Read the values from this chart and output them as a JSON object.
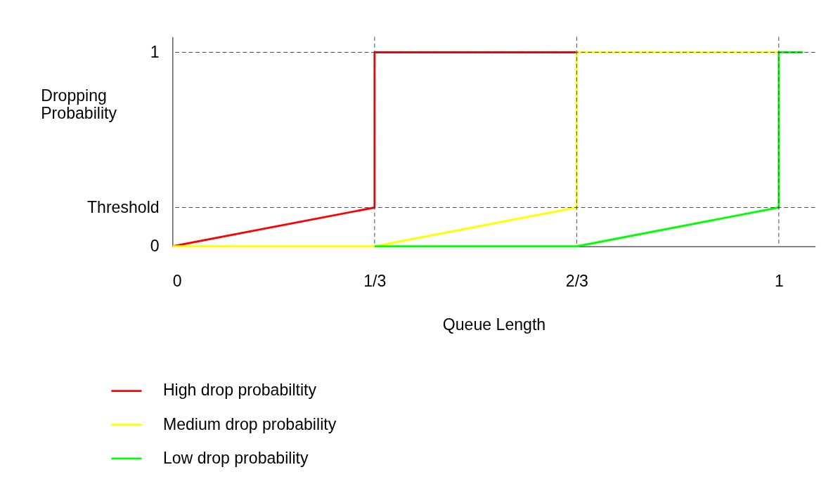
{
  "chart_data": {
    "type": "line",
    "xlabel": "Queue Length",
    "ylabel": "Dropping Probability",
    "xlim": [
      0,
      1.06
    ],
    "ylim": [
      0,
      1.08
    ],
    "xticks": [
      0,
      {
        "value": 0.3333,
        "label": "1/3"
      },
      {
        "value": 0.6667,
        "label": "2/3"
      },
      1
    ],
    "yticks": [
      0,
      {
        "value": 0.2,
        "label": "Threshold"
      },
      1
    ],
    "series": [
      {
        "name": "High drop probabiltity",
        "color": "#ff0000",
        "x": [
          0,
          0.3333,
          0.3333,
          0.6667
        ],
        "values": [
          0,
          0.2,
          1,
          1
        ]
      },
      {
        "name": "Medium drop probability",
        "color": "#ffff00",
        "x": [
          0,
          0.3333,
          0.6667,
          0.6667,
          1
        ],
        "values": [
          0,
          0,
          0.2,
          1,
          1
        ]
      },
      {
        "name": "Low drop probability",
        "color": "#00ff00",
        "x": [
          0.3333,
          0.6667,
          1,
          1,
          1.04
        ],
        "values": [
          0,
          0,
          0.2,
          1,
          1
        ]
      }
    ],
    "ref_lines": [
      {
        "axis": "y",
        "value": 1,
        "label": null,
        "line_style": "dashed"
      },
      {
        "axis": "y",
        "value": 0.2,
        "label": null,
        "line_style": "dashed"
      },
      {
        "axis": "x",
        "value": 0.3333,
        "label": null,
        "line_style": "dashed"
      },
      {
        "axis": "x",
        "value": 0.6667,
        "label": null,
        "line_style": "dashed"
      },
      {
        "axis": "x",
        "value": 1,
        "label": null,
        "line_style": "dashed"
      }
    ],
    "legend": "bottom",
    "grid": false
  }
}
